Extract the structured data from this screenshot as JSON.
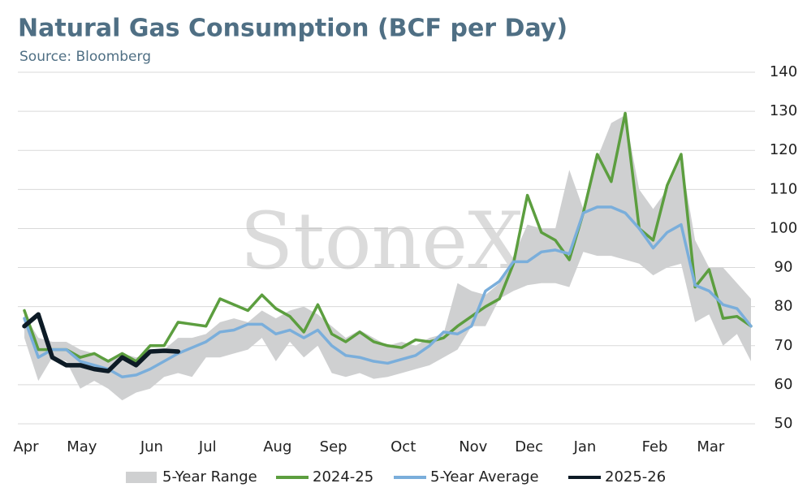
{
  "chart_data": {
    "type": "line",
    "title": "Natural Gas Consumption (BCF per Day)",
    "subtitle": "Source: Bloomberg",
    "watermark": "StoneX",
    "categories": [
      "Apr",
      null,
      null,
      null,
      "May",
      null,
      null,
      null,
      null,
      "Jun",
      null,
      null,
      null,
      "Jul",
      null,
      null,
      null,
      null,
      "Aug",
      null,
      null,
      null,
      "Sep",
      null,
      null,
      null,
      null,
      "Oct",
      null,
      null,
      null,
      null,
      "Nov",
      null,
      null,
      null,
      "Dec",
      null,
      null,
      null,
      "Jan",
      null,
      null,
      null,
      null,
      "Feb",
      null,
      null,
      null,
      "Mar",
      null,
      null,
      null
    ],
    "ylim": [
      50,
      140
    ],
    "yticks": [
      50,
      60,
      70,
      80,
      90,
      100,
      110,
      120,
      130,
      140
    ],
    "grid": true,
    "legend": "bottom",
    "range": {
      "name": "5-Year Range",
      "color": "#cfd0d1",
      "high": [
        78,
        72,
        71,
        71,
        69,
        68,
        66.5,
        68,
        67,
        68,
        69,
        72,
        72,
        73,
        76,
        77,
        76,
        79,
        77,
        79,
        80,
        78,
        75,
        72,
        74,
        72,
        70,
        71,
        70,
        72,
        73,
        86,
        84,
        83,
        86,
        93,
        101,
        100,
        100,
        115,
        105,
        118,
        127,
        129,
        110,
        105,
        110,
        118,
        97,
        90,
        90,
        86,
        82
      ],
      "low": [
        72,
        61,
        67,
        66,
        59,
        61,
        59,
        56,
        58,
        59,
        62,
        63,
        62,
        67,
        67,
        68,
        69,
        72,
        66,
        71,
        67,
        70,
        63,
        62,
        63,
        61.5,
        62,
        63,
        64,
        65,
        67,
        69,
        75,
        75,
        82,
        84,
        85.5,
        86,
        86,
        85,
        94,
        93,
        93,
        92,
        91,
        88,
        90,
        91,
        76,
        78,
        70,
        73,
        66
      ]
    },
    "series": [
      {
        "name": "2024-25",
        "color": "#5c9e3f",
        "values": [
          79,
          69,
          69,
          69,
          67,
          68,
          66,
          68,
          66,
          70,
          70,
          76,
          75.5,
          75,
          82,
          80.5,
          79,
          83,
          79.5,
          77.5,
          73.5,
          80.5,
          73,
          71,
          73.5,
          71,
          70,
          69.5,
          71.5,
          71,
          72,
          75,
          77.5,
          80,
          82,
          91,
          108.5,
          99,
          97,
          92,
          104,
          119,
          112,
          129.5,
          100,
          97,
          111,
          119,
          85,
          89.5,
          77,
          77.5,
          75
        ]
      },
      {
        "name": "5-Year Average",
        "color": "#7aaedb",
        "values": [
          77,
          67,
          69,
          69,
          66,
          65,
          64,
          62,
          62.5,
          64,
          66,
          68,
          69.5,
          71,
          73.5,
          74,
          75.5,
          75.5,
          73,
          74,
          72,
          74,
          70,
          67.5,
          67,
          66,
          65.5,
          66.5,
          67.5,
          70,
          73.5,
          73,
          75,
          84,
          86.5,
          91.5,
          91.5,
          94,
          94.5,
          93.5,
          104,
          105.5,
          105.5,
          104,
          100,
          95,
          99,
          101,
          85.5,
          84,
          80.5,
          79.5,
          75
        ]
      },
      {
        "name": "2025-26",
        "color": "#0d1b26",
        "values": [
          75,
          78,
          67,
          65,
          65,
          64,
          63.5,
          67,
          65,
          68.5,
          68.7,
          68.5,
          null,
          null,
          null,
          null,
          null,
          null,
          null,
          null,
          null,
          null,
          null,
          null,
          null,
          null,
          null,
          null,
          null,
          null,
          null,
          null,
          null,
          null,
          null,
          null,
          null,
          null,
          null,
          null,
          null,
          null,
          null,
          null,
          null,
          null,
          null,
          null,
          null,
          null,
          null,
          null,
          null
        ]
      }
    ]
  }
}
